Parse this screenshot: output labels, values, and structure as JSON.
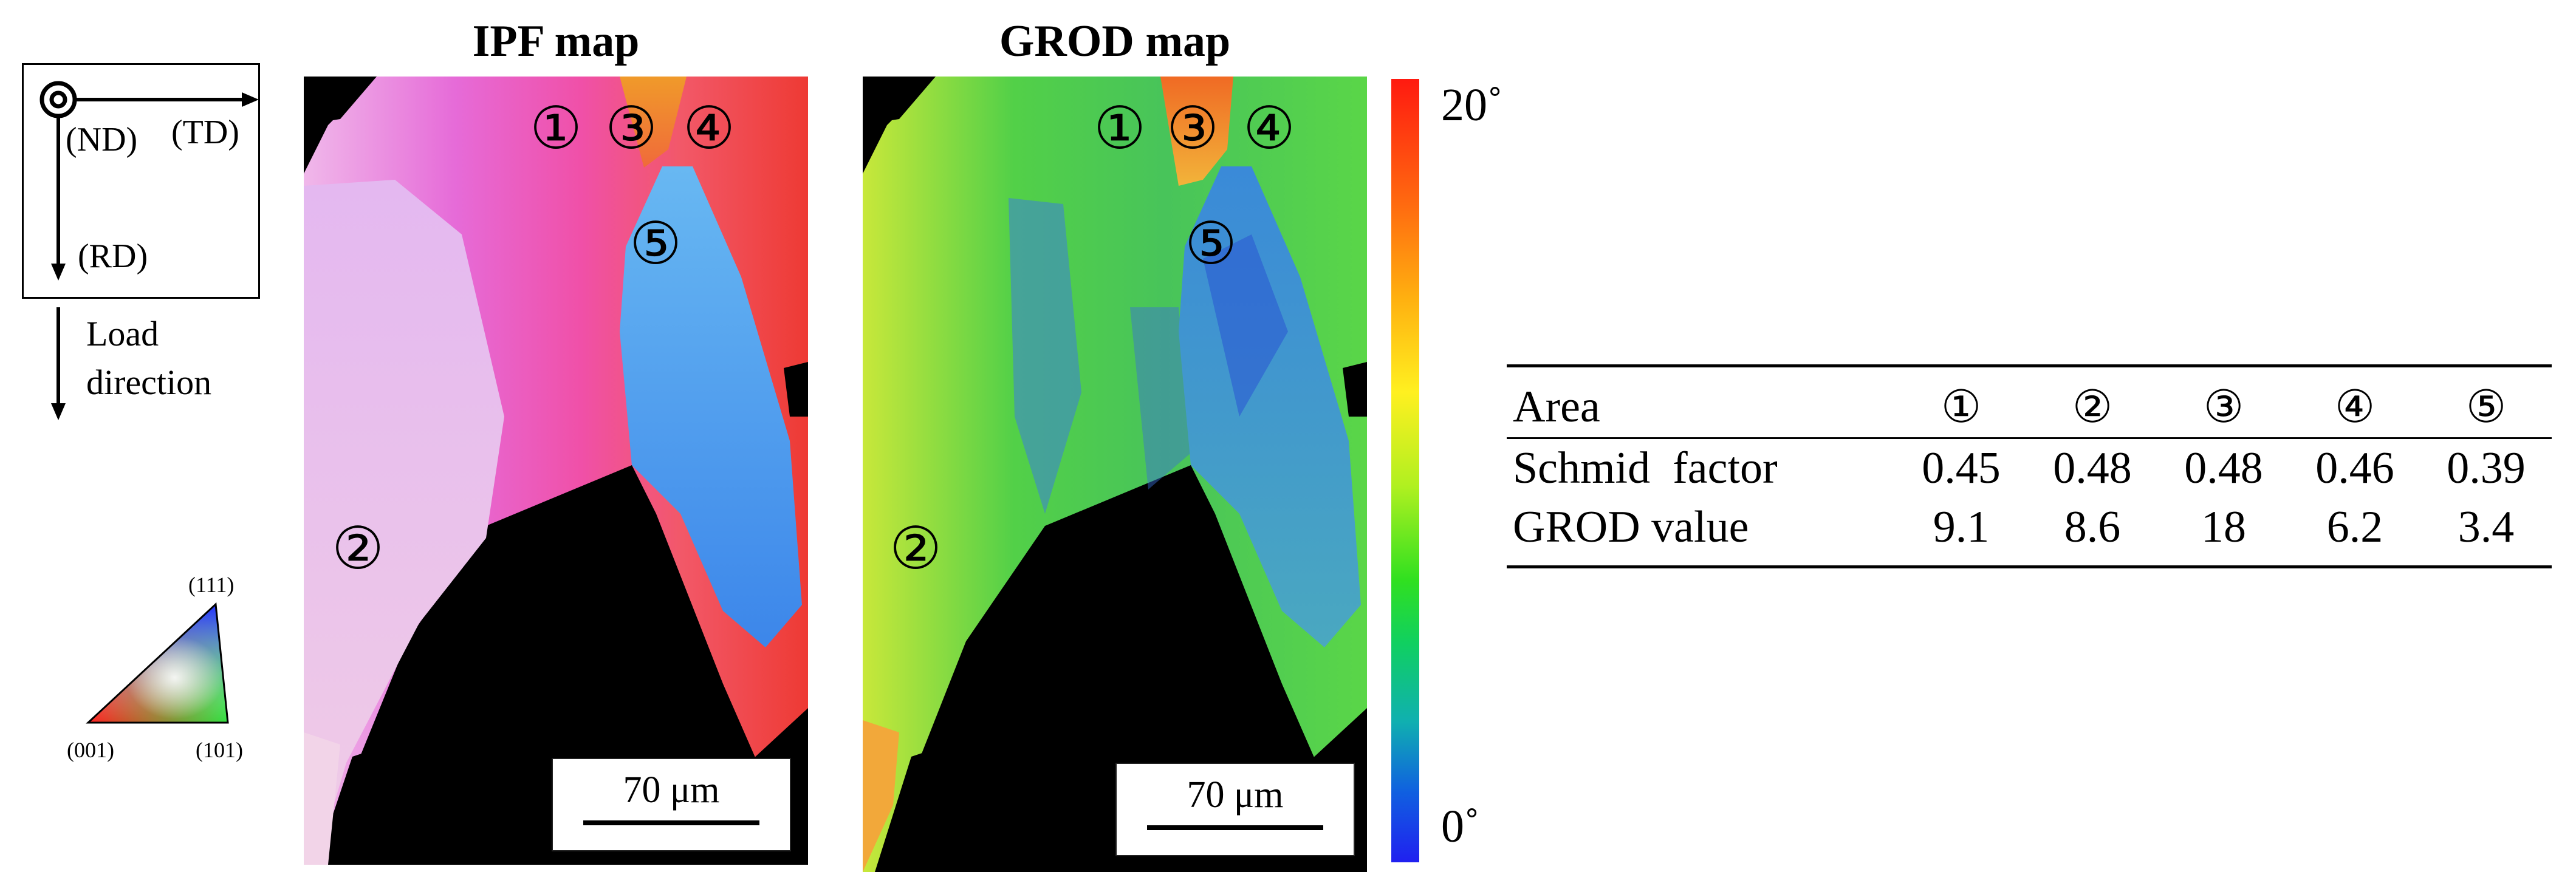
{
  "axes": {
    "nd": "(ND)",
    "td": "(TD)",
    "rd": "(RD)",
    "load_line1": "Load",
    "load_line2": "direction"
  },
  "ipf_key": {
    "corner_top": "(111)",
    "corner_left": "(001)",
    "corner_right": "(101)"
  },
  "ipf_map": {
    "title": "IPF map",
    "scale_bar": "70 μm",
    "area_markers": [
      "①",
      "③",
      "④",
      "⑤",
      "②"
    ]
  },
  "grod_map": {
    "title": "GROD map",
    "scale_bar": "70 μm",
    "area_markers": [
      "①",
      "③",
      "④",
      "⑤",
      "②"
    ]
  },
  "colorbar": {
    "max_label": "20˚",
    "min_label": "0˚",
    "max_value": 20,
    "min_value": 0
  },
  "table": {
    "header": [
      "Area",
      "①",
      "②",
      "③",
      "④",
      "⑤"
    ],
    "rows": [
      [
        "Schmid  factor",
        "0.45",
        "0.48",
        "0.48",
        "0.46",
        "0.39"
      ],
      [
        "GROD value",
        "9.1",
        "8.6",
        "18",
        "6.2",
        "3.4"
      ]
    ]
  },
  "colors": {
    "map_background": "#000000",
    "ipf_magenta": "#e86cd6",
    "ipf_blue": "#5aa8ee",
    "ipf_red": "#ee4a3c",
    "grod_green": "#4fd04a",
    "grod_blue": "#2a58d8",
    "grod_orange": "#f39a24"
  }
}
